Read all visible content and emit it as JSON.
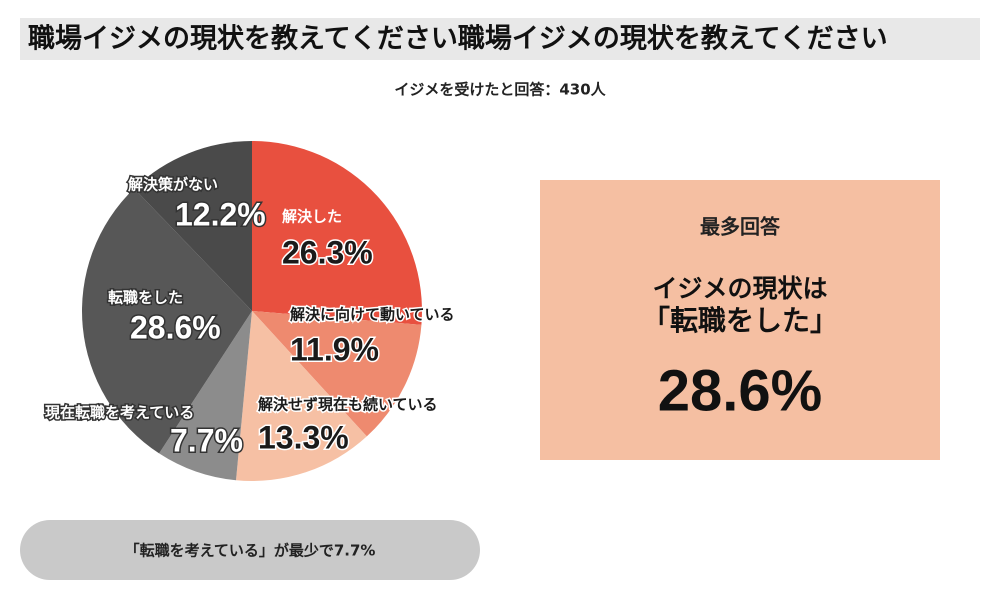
{
  "chart_data": {
    "type": "pie",
    "title": "職場イジメの現状を教えてください職場イジメの現状を教えてください",
    "subtitle": "イジメを受けたと回答：430人",
    "categories": [
      "解決した",
      "解決に向けて動いている",
      "解決せず現在も続いている",
      "現在転職を考えている",
      "転職をした",
      "解決策がない"
    ],
    "values": [
      26.3,
      11.9,
      13.3,
      7.7,
      28.6,
      12.2
    ],
    "value_labels": [
      "26.3%",
      "11.9%",
      "13.3%",
      "7.7%",
      "28.6%",
      "12.2%"
    ],
    "colors": [
      "#e8503f",
      "#ee8a6f",
      "#f6c0a4",
      "#8c8c8c",
      "#575757",
      "#4a4a4a"
    ],
    "highlight": {
      "heading": "最多回答",
      "line1": "イジメの現状は",
      "line2": "「転職をした」",
      "value_label": "28.6%"
    },
    "note": "「転職を考えている」が最少で7.7%"
  }
}
